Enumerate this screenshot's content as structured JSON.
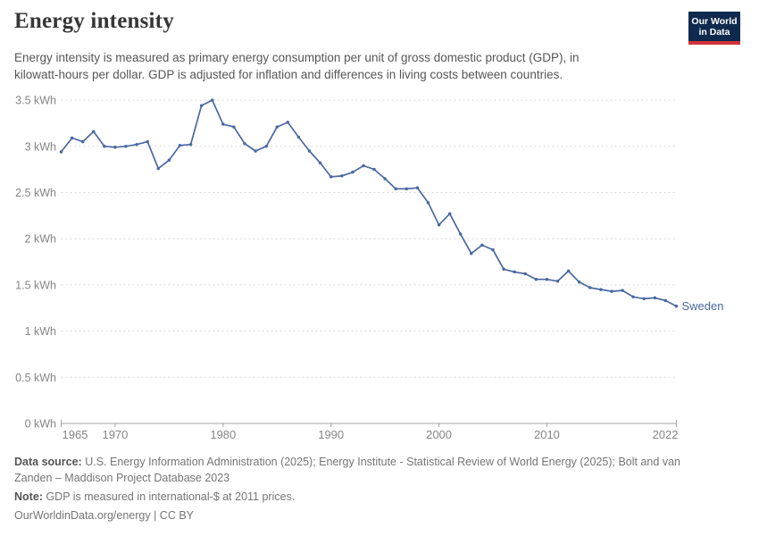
{
  "header": {
    "title": "Energy intensity",
    "subtitle_lines": [
      "Energy intensity is measured as primary energy consumption per unit of gross domestic product (GDP), in",
      "kilowatt-hours per dollar. GDP is adjusted for inflation and differences in living costs between countries."
    ],
    "logo": {
      "line1": "Our World",
      "line2": "in Data",
      "bg_color": "#0f2a4e",
      "accent_color": "#d13239"
    }
  },
  "chart_data": {
    "type": "line",
    "title": "Energy intensity",
    "entity": "Sweden",
    "unit": "kWh",
    "xlim": [
      1965,
      2022
    ],
    "ylim": [
      0,
      3.5
    ],
    "grid": "horizontal-dashed",
    "legend_position": "end-of-line",
    "years": [
      1965,
      1966,
      1967,
      1968,
      1969,
      1970,
      1971,
      1972,
      1973,
      1974,
      1975,
      1976,
      1977,
      1978,
      1979,
      1980,
      1981,
      1982,
      1983,
      1984,
      1985,
      1986,
      1987,
      1988,
      1989,
      1990,
      1991,
      1992,
      1993,
      1994,
      1995,
      1996,
      1997,
      1998,
      1999,
      2000,
      2001,
      2002,
      2003,
      2004,
      2005,
      2006,
      2007,
      2008,
      2009,
      2010,
      2011,
      2012,
      2013,
      2014,
      2015,
      2016,
      2017,
      2018,
      2019,
      2020,
      2021,
      2022
    ],
    "values": [
      2.94,
      3.09,
      3.05,
      3.16,
      3.0,
      2.99,
      3.0,
      3.02,
      3.05,
      2.76,
      2.85,
      3.01,
      3.02,
      3.44,
      3.5,
      3.24,
      3.21,
      3.03,
      2.95,
      3.0,
      3.21,
      3.26,
      3.1,
      2.95,
      2.82,
      2.67,
      2.68,
      2.72,
      2.79,
      2.75,
      2.65,
      2.54,
      2.54,
      2.55,
      2.39,
      2.15,
      2.27,
      2.05,
      1.84,
      1.93,
      1.88,
      1.67,
      1.64,
      1.62,
      1.56,
      1.56,
      1.54,
      1.65,
      1.53,
      1.47,
      1.45,
      1.43,
      1.44,
      1.37,
      1.35,
      1.36,
      1.33,
      1.27
    ],
    "y_ticks": [
      {
        "value": 0,
        "label": "0 kWh"
      },
      {
        "value": 0.5,
        "label": "0.5 kWh"
      },
      {
        "value": 1,
        "label": "1 kWh"
      },
      {
        "value": 1.5,
        "label": "1.5 kWh"
      },
      {
        "value": 2,
        "label": "2 kWh"
      },
      {
        "value": 2.5,
        "label": "2.5 kWh"
      },
      {
        "value": 3,
        "label": "3 kWh"
      },
      {
        "value": 3.5,
        "label": "3.5 kWh"
      }
    ],
    "x_ticks": [
      {
        "value": 1965,
        "label": "1965"
      },
      {
        "value": 1970,
        "label": "1970"
      },
      {
        "value": 1980,
        "label": "1980"
      },
      {
        "value": 1990,
        "label": "1990"
      },
      {
        "value": 2000,
        "label": "2000"
      },
      {
        "value": 2010,
        "label": "2010"
      },
      {
        "value": 2022,
        "label": "2022"
      }
    ],
    "colors": {
      "line": "#4a69a2",
      "grid": "#d8d8d8",
      "axis": "#a3a3a3",
      "tick_label": "#858585"
    }
  },
  "footer": {
    "source_label": "Data source:",
    "source_lines": [
      "U.S. Energy Information Administration (2025); Energy Institute - Statistical Review of World Energy (2025); Bolt and van",
      "Zanden – Maddison Project Database 2023"
    ],
    "note_label": "Note:",
    "note_text": "GDP is measured in international-$ at 2011 prices.",
    "citation": "OurWorldinData.org/energy | CC BY"
  }
}
